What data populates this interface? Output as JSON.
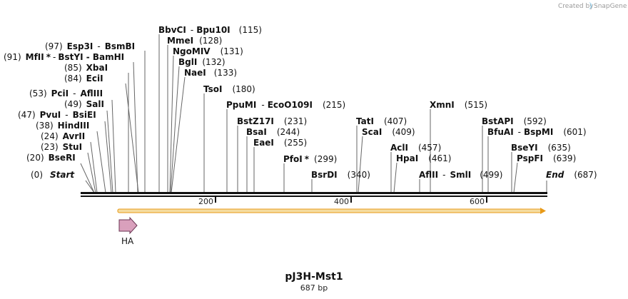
{
  "credit": {
    "text": "Created by",
    "brand": "SnapGene"
  },
  "map": {
    "title": "pJ3H-Mst1",
    "length_label": "687 bp",
    "length_bp": 687,
    "tick_labels": [
      "200",
      "400",
      "600"
    ],
    "start_label": "Start",
    "start_pos": "(0)",
    "end_label": "End",
    "end_pos": "(687)"
  },
  "sites": [
    {
      "pos": "(91)",
      "name": "MfII",
      "star": "*",
      "sep": "-",
      "others": "BstYI  -  BamHI"
    },
    {
      "pos": "(97)",
      "name": "Esp3I",
      "sep": "-",
      "others": "BsmBI"
    },
    {
      "pos": "(85)",
      "name": "XbaI"
    },
    {
      "pos": "(84)",
      "name": "EciI"
    },
    {
      "pos": "(53)",
      "name": "PciI",
      "sep": "-",
      "others": "AflIII"
    },
    {
      "pos": "(49)",
      "name": "SalI"
    },
    {
      "pos": "(47)",
      "name": "PvuI",
      "sep": "-",
      "others": "BsiEI"
    },
    {
      "pos": "(38)",
      "name": "HindIII"
    },
    {
      "pos": "(24)",
      "name": "AvrII"
    },
    {
      "pos": "(23)",
      "name": "StuI"
    },
    {
      "pos": "(20)",
      "name": "BseRI"
    },
    {
      "pos": "(115)",
      "name": "BbvCI",
      "sep": "-",
      "others": "Bpu10I"
    },
    {
      "pos": "(128)",
      "name": "MmeI"
    },
    {
      "pos": "(131)",
      "name": "NgoMIV"
    },
    {
      "pos": "(132)",
      "name": "BglI"
    },
    {
      "pos": "(133)",
      "name": "NaeI"
    },
    {
      "pos": "(180)",
      "name": "TsoI"
    },
    {
      "pos": "(215)",
      "name": "PpuMI",
      "sep": "-",
      "others": "EcoO109I"
    },
    {
      "pos": "(231)",
      "name": "BstZ17I"
    },
    {
      "pos": "(244)",
      "name": "BsaI"
    },
    {
      "pos": "(255)",
      "name": "EaeI"
    },
    {
      "pos": "(299)",
      "name": "PfoI",
      "star": "*"
    },
    {
      "pos": "(340)",
      "name": "BsrDI"
    },
    {
      "pos": "(407)",
      "name": "TatI"
    },
    {
      "pos": "(409)",
      "name": "ScaI"
    },
    {
      "pos": "(457)",
      "name": "AclI"
    },
    {
      "pos": "(461)",
      "name": "HpaI"
    },
    {
      "pos": "(499)",
      "name": "AflII",
      "sep": "-",
      "others": "SmlI"
    },
    {
      "pos": "(515)",
      "name": "XmnI"
    },
    {
      "pos": "(592)",
      "name": "BstAPI"
    },
    {
      "pos": "(601)",
      "name": "BfuAI",
      "sep": "-",
      "others": "BspMI"
    },
    {
      "pos": "(635)",
      "name": "BseYI"
    },
    {
      "pos": "(639)",
      "name": "PspFI"
    }
  ],
  "features": [
    {
      "name": "HA",
      "color": "#d9a0bc",
      "type": "arrow-forward"
    }
  ],
  "colors": {
    "orf_fill": "#f5dca0",
    "orf_edge": "#e89a18",
    "feature_fill": "#d9a0bc",
    "backbone": "#111111"
  }
}
